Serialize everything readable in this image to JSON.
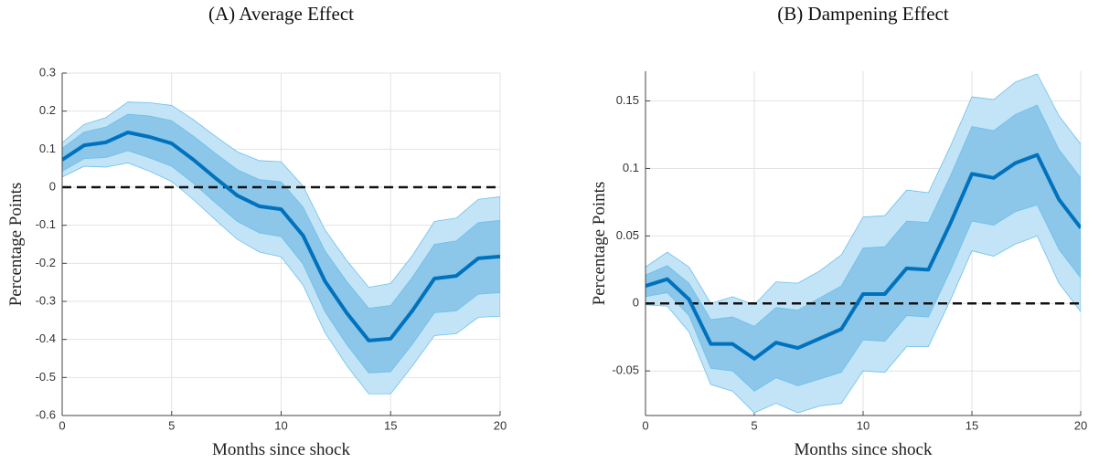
{
  "chart_data": [
    {
      "type": "line",
      "title": "(A) Average Effect",
      "xlabel": "Months since shock",
      "ylabel": "Percentage Points",
      "x": [
        0,
        1,
        2,
        3,
        4,
        5,
        6,
        7,
        8,
        9,
        10,
        11,
        12,
        13,
        14,
        15,
        16,
        17,
        18,
        19,
        20
      ],
      "xlim": [
        0,
        20
      ],
      "xticks": [
        0,
        5,
        10,
        15,
        20
      ],
      "ylim": [
        -0.6,
        0.3
      ],
      "yticks": [
        -0.6,
        -0.5,
        -0.4,
        -0.3,
        -0.2,
        -0.1,
        0,
        0.1,
        0.2,
        0.3
      ],
      "grid": true,
      "reference_line": 0,
      "color": "#0072bd",
      "values": [
        0.072,
        0.11,
        0.118,
        0.144,
        0.132,
        0.115,
        0.072,
        0.024,
        -0.022,
        -0.05,
        -0.058,
        -0.127,
        -0.247,
        -0.331,
        -0.403,
        -0.398,
        -0.324,
        -0.24,
        -0.233,
        -0.187,
        -0.182
      ],
      "bands": [
        {
          "color": "#c3e4f7",
          "upper": [
            0.117,
            0.165,
            0.183,
            0.224,
            0.222,
            0.215,
            0.177,
            0.134,
            0.093,
            0.07,
            0.067,
            0.003,
            -0.112,
            -0.193,
            -0.263,
            -0.253,
            -0.179,
            -0.09,
            -0.081,
            -0.032,
            -0.025
          ],
          "lower": [
            0.027,
            0.055,
            0.053,
            0.064,
            0.042,
            0.015,
            -0.033,
            -0.086,
            -0.137,
            -0.17,
            -0.183,
            -0.257,
            -0.382,
            -0.469,
            -0.543,
            -0.543,
            -0.469,
            -0.39,
            -0.385,
            -0.342,
            -0.339
          ]
        },
        {
          "color": "#8cc6e9",
          "upper": [
            0.102,
            0.145,
            0.158,
            0.192,
            0.187,
            0.175,
            0.134,
            0.089,
            0.046,
            0.02,
            0.014,
            -0.052,
            -0.167,
            -0.248,
            -0.318,
            -0.311,
            -0.236,
            -0.15,
            -0.141,
            -0.093,
            -0.087
          ],
          "lower": [
            0.042,
            0.075,
            0.078,
            0.096,
            0.077,
            0.055,
            0.01,
            -0.041,
            -0.09,
            -0.12,
            -0.13,
            -0.202,
            -0.327,
            -0.414,
            -0.488,
            -0.485,
            -0.412,
            -0.33,
            -0.325,
            -0.281,
            -0.277
          ]
        }
      ]
    },
    {
      "type": "line",
      "title": "(B) Dampening Effect",
      "xlabel": "Months since shock",
      "ylabel": "Percentage Points",
      "x": [
        0,
        1,
        2,
        3,
        4,
        5,
        6,
        7,
        8,
        9,
        10,
        11,
        12,
        13,
        14,
        15,
        16,
        17,
        18,
        19,
        20
      ],
      "xlim": [
        0,
        20
      ],
      "xticks": [
        0,
        5,
        10,
        15,
        20
      ],
      "ylim": [
        -0.083,
        0.172
      ],
      "yticks": [
        -0.05,
        0,
        0.05,
        0.1,
        0.15
      ],
      "grid": true,
      "reference_line": 0,
      "color": "#0072bd",
      "values": [
        0.013,
        0.018,
        0.003,
        -0.03,
        -0.03,
        -0.041,
        -0.029,
        -0.033,
        -0.026,
        -0.019,
        0.007,
        0.007,
        0.026,
        0.025,
        0.059,
        0.096,
        0.093,
        0.104,
        0.11,
        0.077,
        0.056
      ],
      "bands": [
        {
          "color": "#c3e4f7",
          "upper": [
            0.027,
            0.038,
            0.027,
            0,
            0.005,
            -0.001,
            0.016,
            0.015,
            0.024,
            0.036,
            0.064,
            0.065,
            0.084,
            0.082,
            0.116,
            0.153,
            0.151,
            0.164,
            0.17,
            0.139,
            0.118
          ],
          "lower": [
            -0.001,
            -0.002,
            -0.021,
            -0.06,
            -0.065,
            -0.081,
            -0.074,
            -0.081,
            -0.076,
            -0.074,
            -0.05,
            -0.051,
            -0.032,
            -0.032,
            0.002,
            0.039,
            0.035,
            0.044,
            0.05,
            0.015,
            -0.006
          ]
        },
        {
          "color": "#8cc6e9",
          "upper": [
            0.021,
            0.028,
            0.015,
            -0.012,
            -0.01,
            -0.017,
            -0.003,
            -0.005,
            0.004,
            0.013,
            0.041,
            0.042,
            0.061,
            0.06,
            0.094,
            0.131,
            0.128,
            0.14,
            0.147,
            0.114,
            0.093
          ],
          "lower": [
            0.005,
            0.008,
            -0.009,
            -0.048,
            -0.05,
            -0.065,
            -0.055,
            -0.061,
            -0.056,
            -0.051,
            -0.027,
            -0.028,
            -0.009,
            -0.01,
            0.024,
            0.061,
            0.058,
            0.068,
            0.073,
            0.04,
            0.019
          ]
        }
      ]
    }
  ]
}
